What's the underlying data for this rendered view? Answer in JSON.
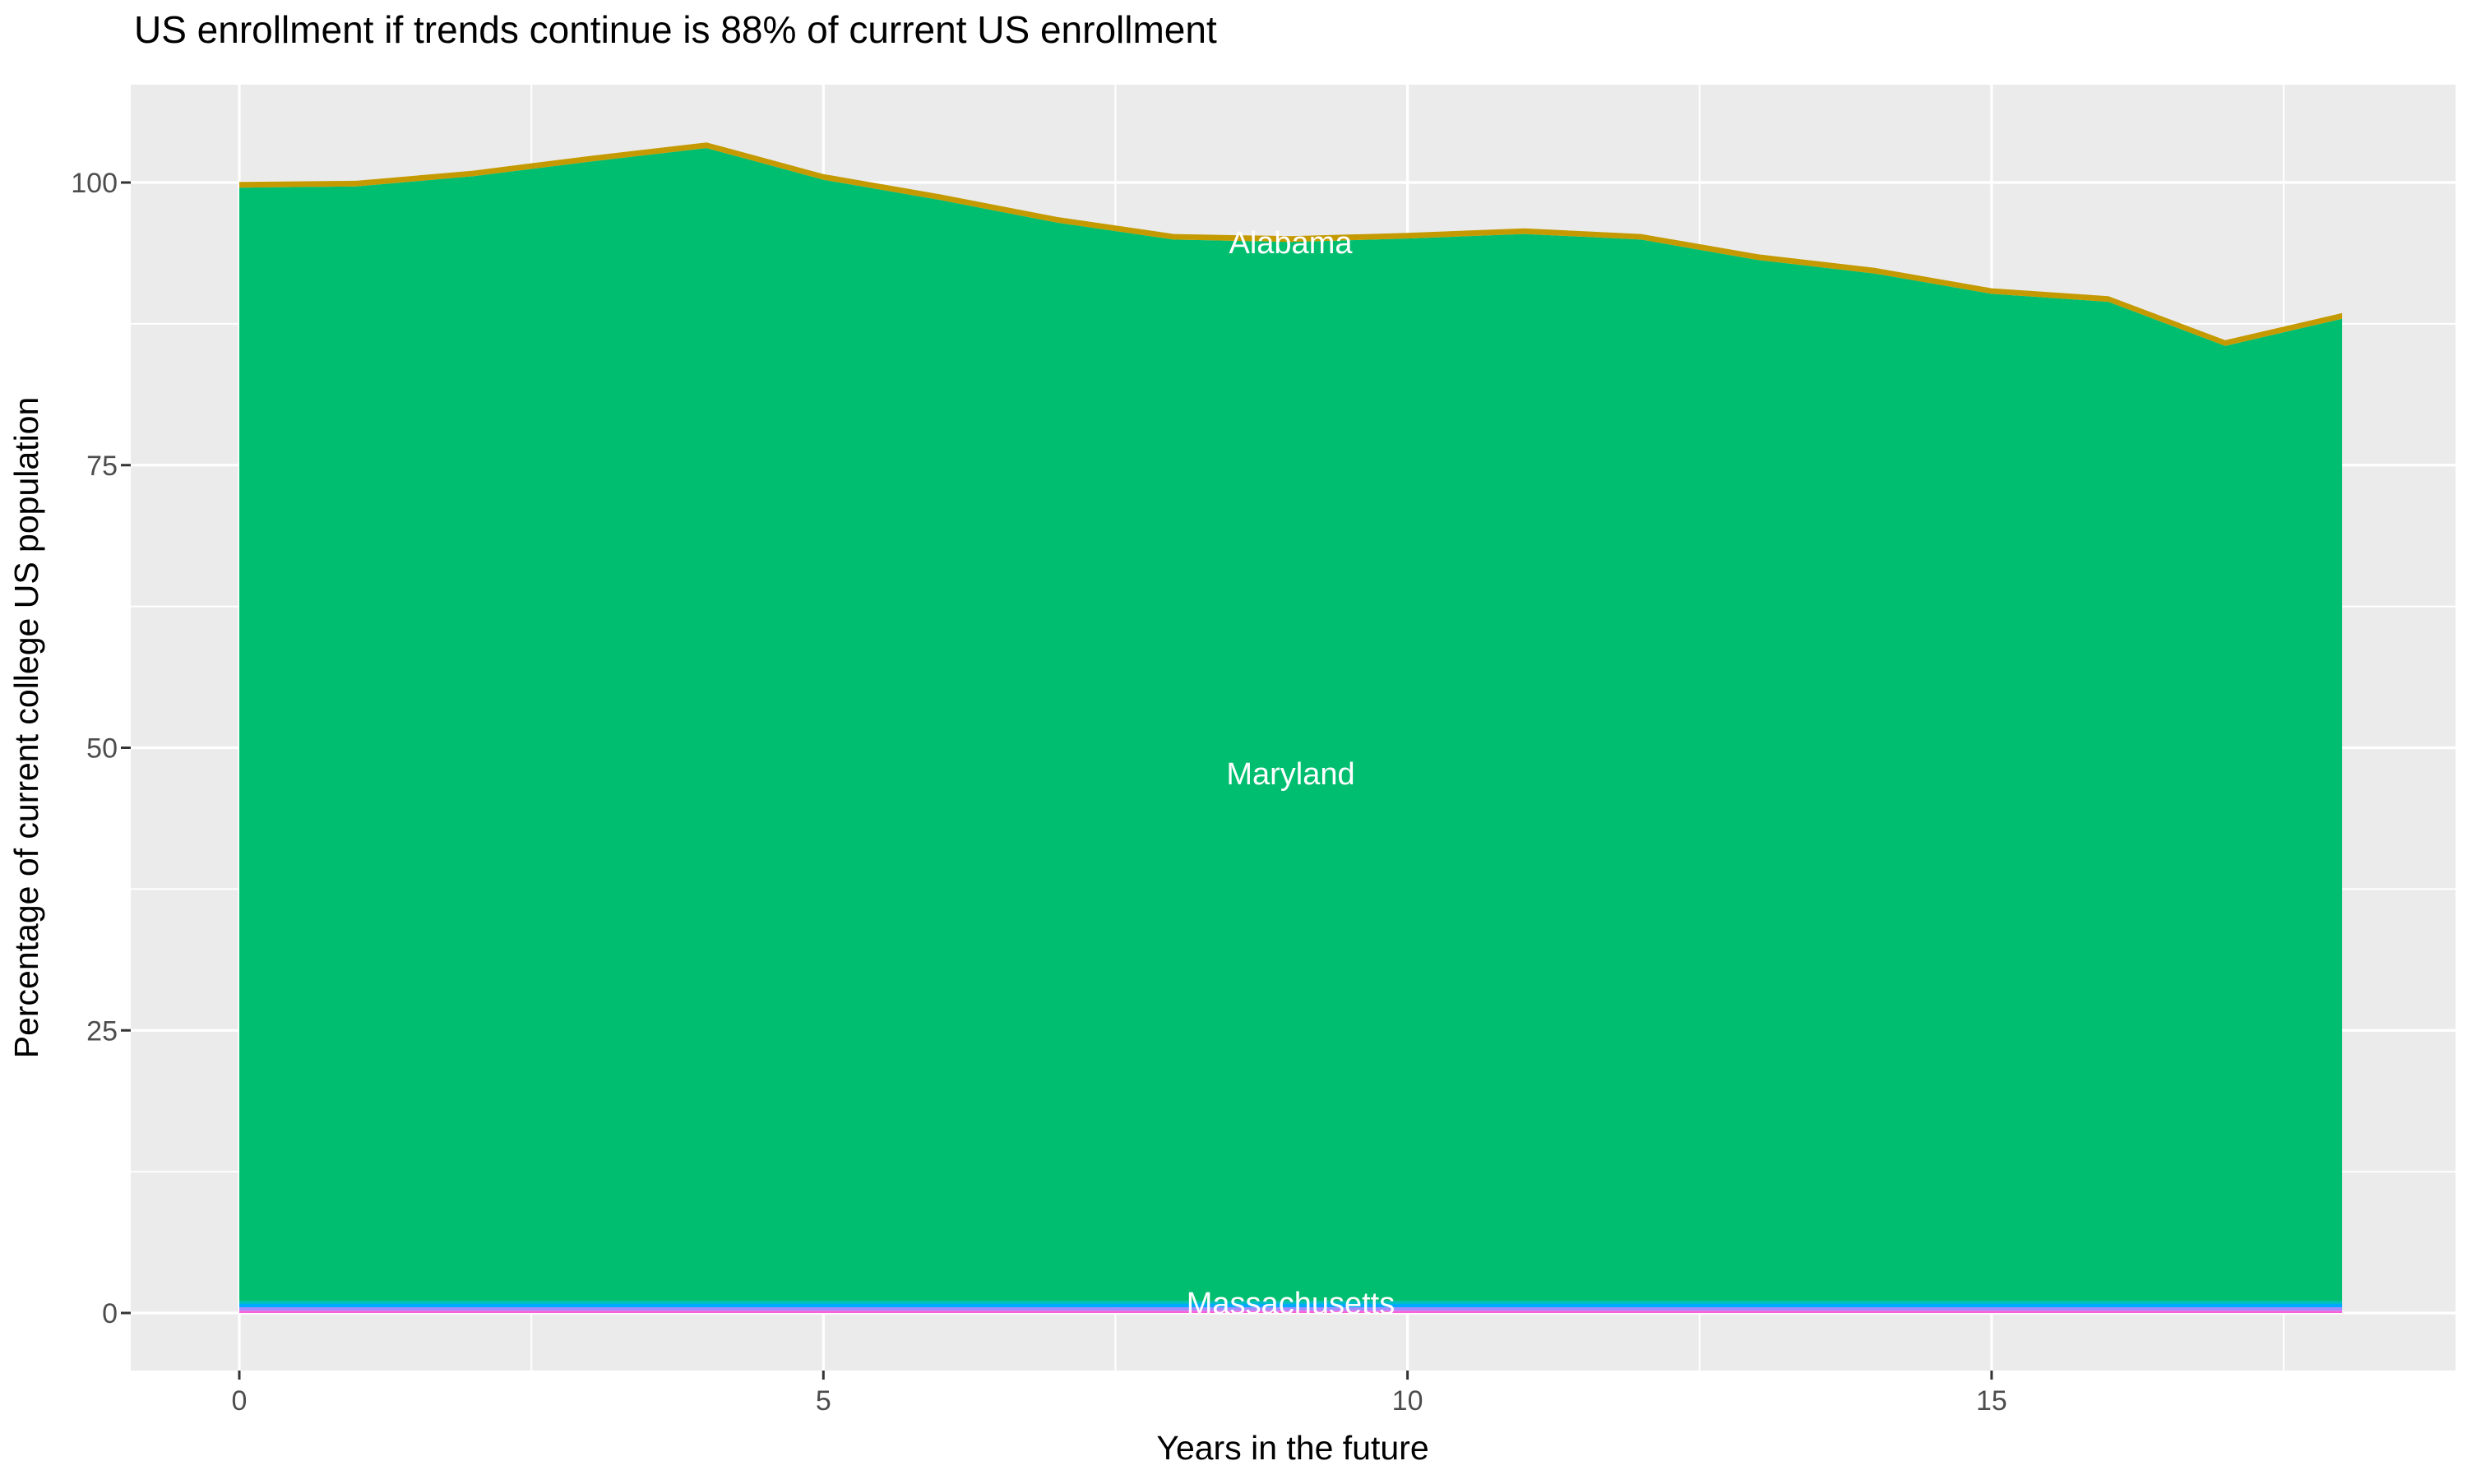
{
  "title": "US enrollment if trends continue is 88% of current US enrollment",
  "axes": {
    "x_title": "Years in the future",
    "y_title": "Percentage of current college US population",
    "x_tick_labels": [
      "0",
      "5",
      "10",
      "15"
    ],
    "x_tick_values": [
      0,
      5,
      10,
      15
    ],
    "x_minor_values": [
      2.5,
      7.5,
      12.5,
      17.5
    ],
    "y_tick_labels": [
      "0",
      "25",
      "50",
      "75",
      "100"
    ],
    "y_tick_values": [
      0,
      25,
      50,
      75,
      100
    ],
    "y_minor_values": [
      12.5,
      37.5,
      62.5,
      87.5
    ]
  },
  "colors": {
    "panel_background": "#EBEBEB",
    "gridline": "#FFFFFF",
    "tick_mark": "#333333",
    "tick_text": "#4D4D4D",
    "title_text": "#000000",
    "alabama_gold": "#C49A00",
    "maryland_green": "#00BE6F",
    "massachusetts_teal": "#00BFC4",
    "band_blue": "#00A9FF",
    "band_violet": "#A58AFF",
    "band_pink": "#FB61D7"
  },
  "area_labels": [
    {
      "text": "Alabama",
      "year": 9,
      "value": 94.7
    },
    {
      "text": "Maryland",
      "year": 9,
      "value": 47.7
    },
    {
      "text": "Massachusetts",
      "year": 9,
      "value": 0.87
    }
  ],
  "chart_data": {
    "type": "area",
    "stacked": true,
    "title": "US enrollment if trends continue is 88% of current US enrollment",
    "xlabel": "Years in the future",
    "ylabel": "Percentage of current college US population",
    "x": [
      0,
      1,
      2,
      3,
      4,
      5,
      6,
      7,
      8,
      9,
      10,
      11,
      12,
      13,
      14,
      15,
      16,
      17,
      18
    ],
    "xlim": [
      -0.9,
      18.9
    ],
    "ylim": [
      -5.4,
      108.7
    ],
    "grid": true,
    "legend": false,
    "note": "Stacked area of states; stack total starts at 100 at year 0, peaks ~103.5 at year 4, dips to ~86 at year 17, ends ~88.4 at year 18. Series listed top-of-stack first. Three thin bottom bands are unlabeled in the image.",
    "series": [
      {
        "name": "Alabama",
        "color": "#C49A00",
        "values": [
          0.5,
          0.5,
          0.5,
          0.5,
          0.5,
          0.5,
          0.5,
          0.5,
          0.5,
          0.5,
          0.5,
          0.5,
          0.5,
          0.5,
          0.5,
          0.5,
          0.5,
          0.5,
          0.5
        ]
      },
      {
        "name": "Maryland",
        "color": "#00BE6F",
        "values": [
          98.5,
          98.6,
          99.5,
          100.8,
          102.0,
          99.2,
          97.4,
          95.4,
          93.9,
          93.7,
          94.0,
          94.4,
          93.9,
          92.1,
          90.9,
          89.1,
          88.4,
          84.5,
          86.9
        ]
      },
      {
        "name": "Massachusetts",
        "color": "#00BFC4",
        "values": [
          0.25,
          0.25,
          0.25,
          0.25,
          0.25,
          0.25,
          0.25,
          0.25,
          0.25,
          0.25,
          0.25,
          0.25,
          0.25,
          0.25,
          0.25,
          0.25,
          0.25,
          0.25,
          0.25
        ]
      },
      {
        "name": "unlabeled-band-blue",
        "color": "#00A9FF",
        "values": [
          0.3,
          0.3,
          0.3,
          0.3,
          0.3,
          0.3,
          0.3,
          0.3,
          0.3,
          0.3,
          0.3,
          0.3,
          0.3,
          0.3,
          0.3,
          0.3,
          0.3,
          0.3,
          0.3
        ]
      },
      {
        "name": "unlabeled-band-violet",
        "color": "#A58AFF",
        "values": [
          0.3,
          0.3,
          0.3,
          0.3,
          0.3,
          0.3,
          0.3,
          0.3,
          0.3,
          0.3,
          0.3,
          0.3,
          0.3,
          0.3,
          0.3,
          0.3,
          0.3,
          0.3,
          0.3
        ]
      },
      {
        "name": "unlabeled-band-pink",
        "color": "#FB61D7",
        "values": [
          0.2,
          0.2,
          0.2,
          0.2,
          0.2,
          0.2,
          0.2,
          0.2,
          0.2,
          0.2,
          0.2,
          0.2,
          0.2,
          0.2,
          0.2,
          0.2,
          0.2,
          0.2,
          0.2
        ]
      }
    ]
  }
}
